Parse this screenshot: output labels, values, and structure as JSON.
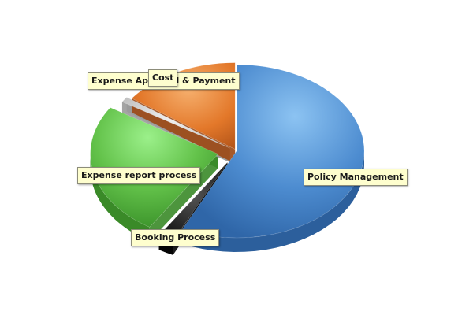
{
  "chart_data": {
    "type": "pie",
    "title": "",
    "slices": [
      {
        "label": "Policy Management",
        "value": 57,
        "color": "#4f8fd0"
      },
      {
        "label": "Booking Process",
        "value": 2,
        "color": "#2a2a2a"
      },
      {
        "label": "Expense report process",
        "value": 25,
        "color": "#63c24a"
      },
      {
        "label": "Expense Approval & Payment",
        "value": 1,
        "color": "#d8d8d8"
      },
      {
        "label": "Cost",
        "value": 15,
        "color": "#e3782a"
      }
    ],
    "legend": "none",
    "style": "3d-exploded"
  }
}
